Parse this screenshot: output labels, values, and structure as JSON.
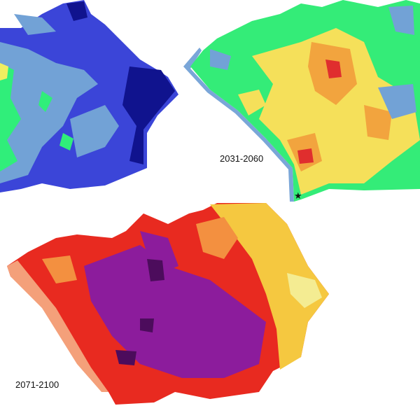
{
  "panels": [
    {
      "label": "2031-2060"
    },
    {
      "label": "2071-2100"
    }
  ]
}
